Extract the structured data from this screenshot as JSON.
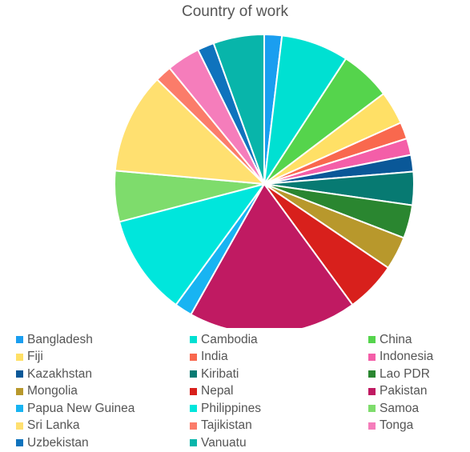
{
  "chart_data": {
    "type": "pie",
    "title": "Country of work",
    "legend_position": "bottom",
    "slices": [
      {
        "label": "Bangladesh",
        "value": 1.9,
        "color": "#1a9ef0"
      },
      {
        "label": "Cambodia",
        "value": 7.3,
        "color": "#00e0d2"
      },
      {
        "label": "China",
        "value": 5.5,
        "color": "#55d44c"
      },
      {
        "label": "Fiji",
        "value": 3.6,
        "color": "#ffe066"
      },
      {
        "label": "India",
        "value": 1.8,
        "color": "#f9684e"
      },
      {
        "label": "Indonesia",
        "value": 1.8,
        "color": "#f45ea8"
      },
      {
        "label": "Kazakhstan",
        "value": 1.8,
        "color": "#0a5898"
      },
      {
        "label": "Kiribati",
        "value": 3.6,
        "color": "#077a72"
      },
      {
        "label": "Lao PDR",
        "value": 3.6,
        "color": "#2a8630"
      },
      {
        "label": "Mongolia",
        "value": 3.6,
        "color": "#b8982c"
      },
      {
        "label": "Nepal",
        "value": 5.5,
        "color": "#d8201c"
      },
      {
        "label": "Pakistan",
        "value": 18.2,
        "color": "#c01a62"
      },
      {
        "label": "Papua New Guinea",
        "value": 1.9,
        "color": "#18b4f2"
      },
      {
        "label": "Philippines",
        "value": 10.9,
        "color": "#00e6dc"
      },
      {
        "label": "Samoa",
        "value": 5.5,
        "color": "#7edc6c"
      },
      {
        "label": "Sri Lanka",
        "value": 10.9,
        "color": "#ffe070"
      },
      {
        "label": "Tajikistan",
        "value": 1.8,
        "color": "#fb7c6a"
      },
      {
        "label": "Tonga",
        "value": 3.6,
        "color": "#f57dbb"
      },
      {
        "label": "Uzbekistan",
        "value": 1.8,
        "color": "#0f73bd"
      },
      {
        "label": "Vanuatu",
        "value": 5.5,
        "color": "#08b5aa"
      }
    ]
  }
}
